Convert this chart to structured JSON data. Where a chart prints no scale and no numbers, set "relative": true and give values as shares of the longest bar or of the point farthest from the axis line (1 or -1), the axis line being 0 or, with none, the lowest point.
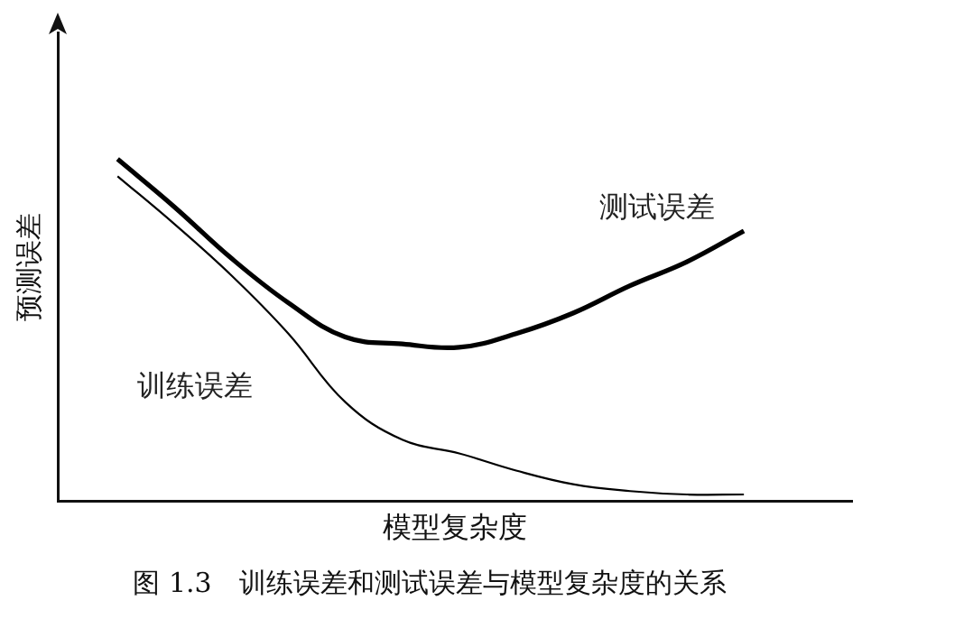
{
  "chart_data": {
    "type": "line",
    "relative": true,
    "title": "图 1.3　训练误差和测试误差与模型复杂度的关系",
    "xlabel": "模型复杂度",
    "ylabel": "预测误差",
    "categories": [
      null,
      null,
      null,
      null,
      null,
      null,
      null,
      null,
      null,
      null,
      null,
      null
    ],
    "series": [
      {
        "name": "测试误差",
        "color": "#000000",
        "values": [
          1,
          0.86,
          0.71,
          0.58,
          0.48,
          0.46,
          0.45,
          0.49,
          0.55,
          0.63,
          0.7,
          0.79
        ]
      },
      {
        "name": "训练误差",
        "color": "#000000",
        "values": [
          0.95,
          0.81,
          0.66,
          0.49,
          0.29,
          0.18,
          0.14,
          0.09,
          0.05,
          0.03,
          0.02,
          0.02
        ]
      }
    ],
    "legend": false,
    "grid": false,
    "tick_labels": false,
    "marker": "none",
    "line_style": "solid"
  }
}
